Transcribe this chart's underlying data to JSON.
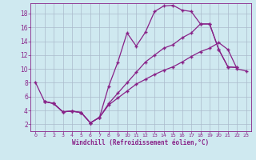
{
  "background_color": "#cfe9f0",
  "grid_color": "#aabbcc",
  "line_color": "#882288",
  "marker": "+",
  "xlabel": "Windchill (Refroidissement éolien,°C)",
  "xlim": [
    -0.5,
    23.5
  ],
  "ylim": [
    1.0,
    19.5
  ],
  "yticks": [
    2,
    4,
    6,
    8,
    10,
    12,
    14,
    16,
    18
  ],
  "xticks": [
    0,
    1,
    2,
    3,
    4,
    5,
    6,
    7,
    8,
    9,
    10,
    11,
    12,
    13,
    14,
    15,
    16,
    17,
    18,
    19,
    20,
    21,
    22,
    23
  ],
  "curve1_x": [
    0,
    1,
    2,
    3,
    4,
    5,
    6,
    7,
    8,
    9,
    10,
    11,
    12,
    13,
    14,
    15,
    16,
    17,
    18,
    19,
    20,
    21,
    22
  ],
  "curve1_y": [
    8.1,
    5.3,
    5.0,
    3.8,
    3.9,
    3.7,
    2.2,
    3.0,
    7.5,
    11.0,
    15.2,
    13.3,
    15.3,
    18.3,
    19.1,
    19.2,
    18.5,
    18.3,
    16.5,
    16.5,
    12.8,
    10.3,
    10.2
  ],
  "curve2_x": [
    1,
    2,
    3,
    4,
    5,
    6,
    7,
    8,
    9,
    10,
    11,
    12,
    13,
    14,
    15,
    16,
    17,
    18,
    19,
    20,
    21,
    22
  ],
  "curve2_y": [
    5.3,
    5.0,
    3.8,
    3.9,
    3.7,
    2.2,
    3.0,
    5.0,
    6.5,
    8.0,
    9.5,
    11.0,
    12.0,
    13.0,
    13.5,
    14.5,
    15.2,
    16.5,
    16.5,
    12.8,
    10.3,
    10.2
  ],
  "curve3_x": [
    1,
    2,
    3,
    4,
    5,
    6,
    7,
    8,
    9,
    10,
    11,
    12,
    13,
    14,
    15,
    16,
    17,
    18,
    19,
    20,
    21,
    22,
    23
  ],
  "curve3_y": [
    5.3,
    5.0,
    3.8,
    3.9,
    3.7,
    2.2,
    3.0,
    4.8,
    5.8,
    6.8,
    7.8,
    8.5,
    9.2,
    9.8,
    10.3,
    11.0,
    11.8,
    12.5,
    13.0,
    13.8,
    12.8,
    10.0,
    9.7
  ]
}
